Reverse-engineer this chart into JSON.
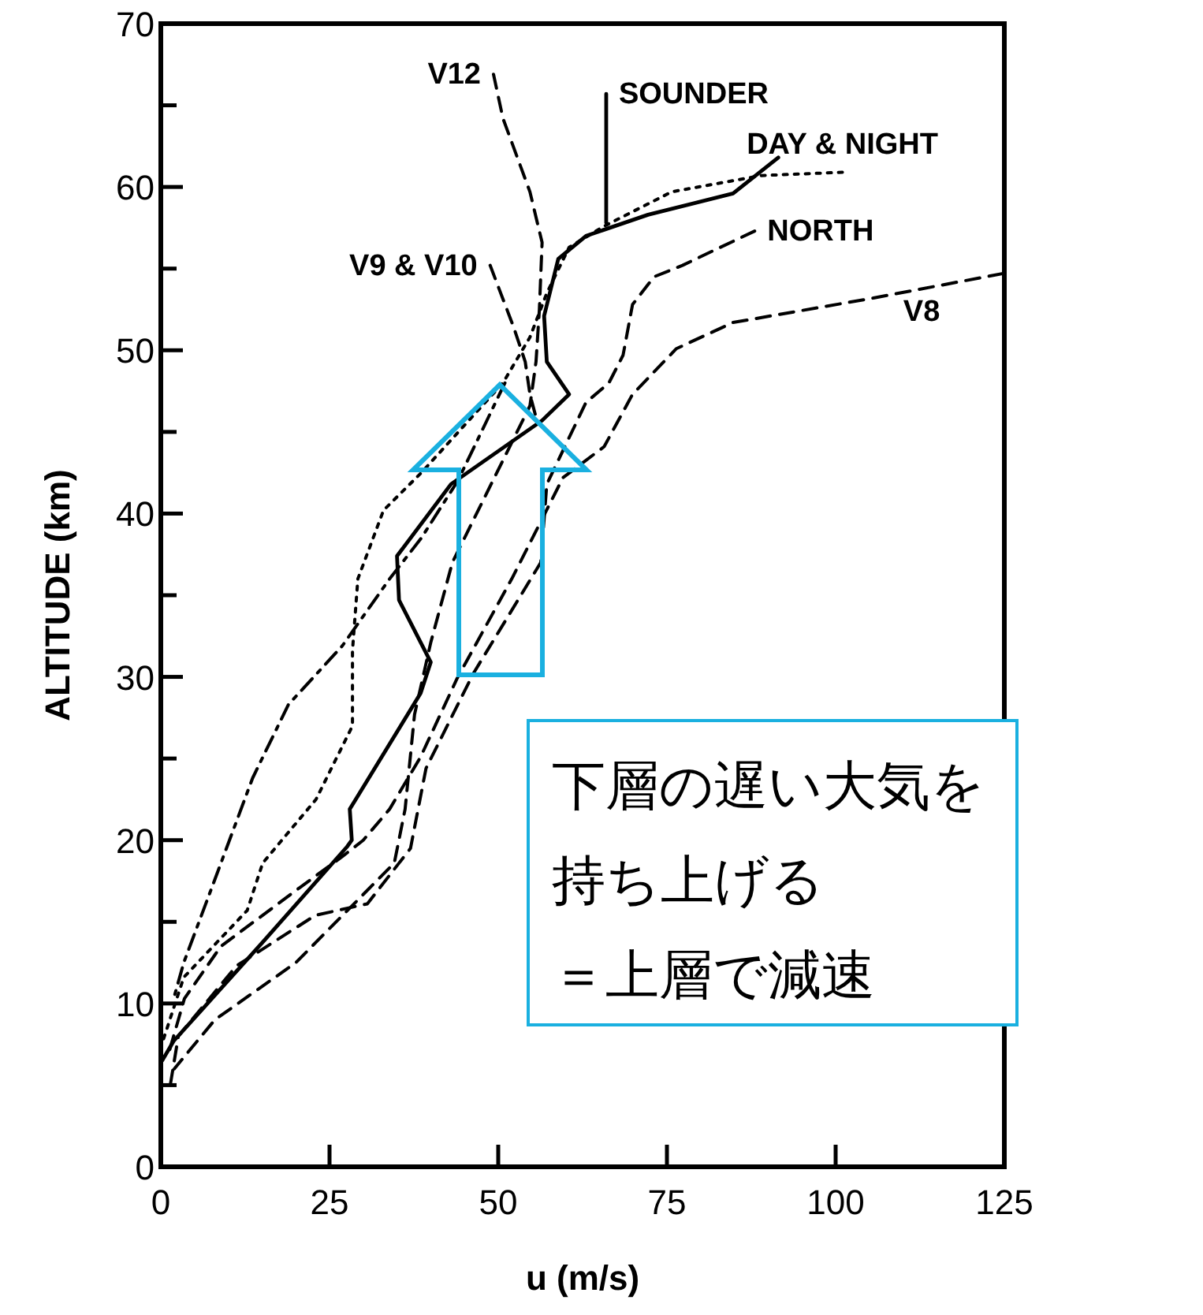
{
  "chart_data": {
    "type": "line",
    "xlabel": "u (m/s)",
    "ylabel": "ALTITUDE (km)",
    "xlim": [
      0,
      125
    ],
    "ylim": [
      0,
      70
    ],
    "xticks": [
      0,
      25,
      50,
      75,
      100,
      125
    ],
    "yticks": [
      0,
      {
        "value": 5,
        "label": null
      },
      10,
      {
        "value": 15,
        "label": null
      },
      20,
      {
        "value": 25,
        "label": null
      },
      30,
      {
        "value": 35,
        "label": null
      },
      40,
      {
        "value": 45,
        "label": null
      },
      50,
      {
        "value": 55,
        "label": null
      },
      60,
      {
        "value": 65,
        "label": null
      },
      70
    ],
    "grid": false,
    "legend": false,
    "annotations": [
      "下層の遅い大気を",
      "持ち上げる",
      "＝上層で減速"
    ],
    "series": [
      {
        "name": "SOUNDER",
        "color": "#000000",
        "line_style": "solid",
        "x": [
          66,
          66
        ],
        "values": [
          65.7,
          57.8
        ]
      },
      {
        "color": "#000000",
        "line_style": "solid",
        "x": [
          91.5,
          84.8,
          72.2,
          63,
          58.9,
          56.8,
          57.2,
          60.5,
          56.5,
          43,
          35,
          35.3,
          40,
          38.5,
          28,
          28.3,
          27.6,
          15.2,
          1.9,
          0.2
        ],
        "values": [
          61.8,
          59.6,
          58.3,
          57,
          55.6,
          52.1,
          49.3,
          47.3,
          45.7,
          41.8,
          37.4,
          34.7,
          30.9,
          29,
          21.9,
          20,
          19.6,
          13.8,
          7.7,
          6.5
        ]
      },
      {
        "name": "DAY & NIGHT",
        "color": "#000000",
        "line_style": "dotted",
        "x": [
          101,
          89,
          75.7,
          65.7,
          60.5,
          57.2,
          54.7,
          50.7,
          38.6,
          33,
          29.2,
          28.4,
          28.4,
          23,
          15.1,
          12.8,
          3.4,
          0.3
        ],
        "values": [
          60.9,
          60.7,
          59.7,
          57.6,
          56.3,
          53.5,
          50.8,
          48,
          42.5,
          40.2,
          36,
          31.6,
          27,
          22.5,
          18.6,
          15.7,
          11.6,
          7.7
        ]
      },
      {
        "name": "V12",
        "color": "#000000",
        "line_style": "dashed",
        "x": [
          49.3,
          50.7,
          54.7,
          56.5,
          56.1,
          55.6,
          54.7,
          43.2,
          40,
          37.6,
          36.2,
          34.6,
          20,
          8,
          2
        ],
        "values": [
          66.9,
          64.2,
          59.7,
          56.6,
          52.5,
          49.3,
          46.6,
          37,
          32.1,
          27.7,
          21.9,
          18.6,
          12.5,
          9,
          6
        ]
      },
      {
        "name": "NORTH",
        "color": "#000000",
        "line_style": "dashed",
        "x": [
          88,
          77.3,
          73.1,
          69.9,
          68.5,
          66.4,
          63,
          57.2,
          56.3,
          46.3,
          39.3,
          37,
          30.6,
          22.9,
          11.2,
          2.6,
          1.2
        ],
        "values": [
          57.3,
          55.2,
          54.5,
          52.8,
          49.7,
          48,
          46.8,
          41.8,
          37,
          30.2,
          24.4,
          19.5,
          16.1,
          15.4,
          12.3,
          8,
          4.5
        ]
      },
      {
        "name": "V8",
        "color": "#000000",
        "line_style": "dashed",
        "x": [
          124.8,
          105.6,
          84.8,
          76.4,
          69.9,
          65.7,
          59.6,
          52,
          43.9,
          38.5,
          33.9,
          30,
          26.9,
          20.6,
          8.9,
          3.5,
          1.2
        ],
        "values": [
          54.7,
          53.2,
          51.7,
          50.1,
          47.3,
          44.1,
          42.2,
          36,
          29.9,
          25.1,
          21.9,
          20,
          19,
          17.1,
          13.5,
          10.3,
          7
        ]
      },
      {
        "name": "V9 & V10",
        "color": "#000000",
        "line_style": "dashed",
        "x": [
          48.8,
          52.3,
          54,
          54.7,
          55.6
        ],
        "values": [
          55.2,
          51.4,
          49.3,
          47.3,
          45.9
        ]
      },
      {
        "color": "#000000",
        "line_style": "dashdot",
        "x": [
          51,
          44,
          38.6,
          33.9,
          26.9,
          18.9,
          13.6,
          7.2,
          3.4,
          1.9
        ],
        "values": [
          48,
          42,
          38.5,
          36,
          31.9,
          28.3,
          23.8,
          16.7,
          12.5,
          10.3
        ]
      }
    ]
  }
}
